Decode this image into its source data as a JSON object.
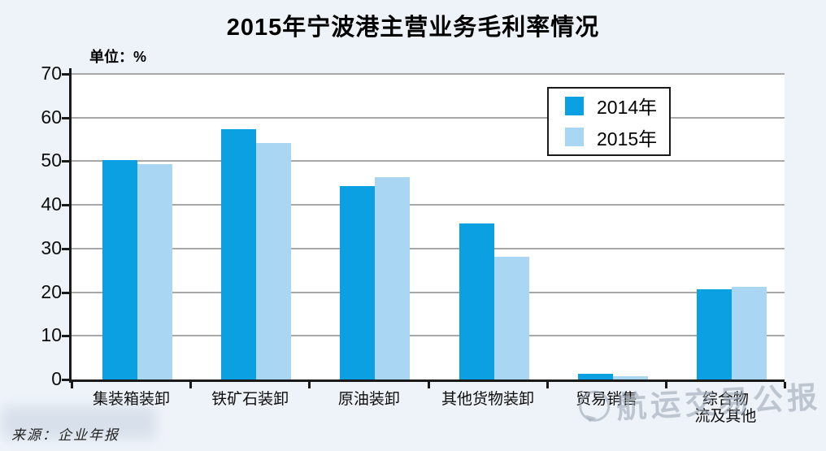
{
  "title": "2015年宁波港主营业务毛利率情况",
  "unit_label": "单位：%",
  "source_note": "来源：企业年报",
  "watermark": {
    "icon": "speech-bubble-icon",
    "text": "航运交易公报"
  },
  "colors": {
    "background": "#eef3f9",
    "plot_background": "#ffffff",
    "gridline": "#a8a8a8",
    "axis": "#1a1a1a",
    "series_2014": "#0aa0e1",
    "series_2015": "#a9d6f2",
    "watermark": "#9eaab6"
  },
  "chart_data": {
    "type": "bar",
    "title": "2015年宁波港主营业务毛利率情况",
    "unit": "%",
    "categories": [
      "集装箱装卸",
      "铁矿石装卸",
      "原油装卸",
      "其他货物装卸",
      "贸易销售",
      "综合物流及其他"
    ],
    "category_display": [
      "集装箱装卸",
      "铁矿石装卸",
      "原油装卸",
      "其他货物装卸",
      "贸易销售",
      "综合物\n流及其他"
    ],
    "series": [
      {
        "name": "2014年",
        "color": "#0aa0e1",
        "values": [
          50.3,
          57.4,
          44.4,
          35.8,
          1.3,
          20.7
        ]
      },
      {
        "name": "2015年",
        "color": "#a9d6f2",
        "values": [
          49.4,
          54.1,
          46.3,
          28.2,
          0.8,
          21.2
        ]
      }
    ],
    "xlabel": "",
    "ylabel": "单位：%",
    "ylim": [
      0,
      70
    ],
    "yticks": [
      70,
      60,
      50,
      40,
      30,
      20,
      10,
      0
    ],
    "grid": true,
    "legend_position": "upper-right"
  }
}
